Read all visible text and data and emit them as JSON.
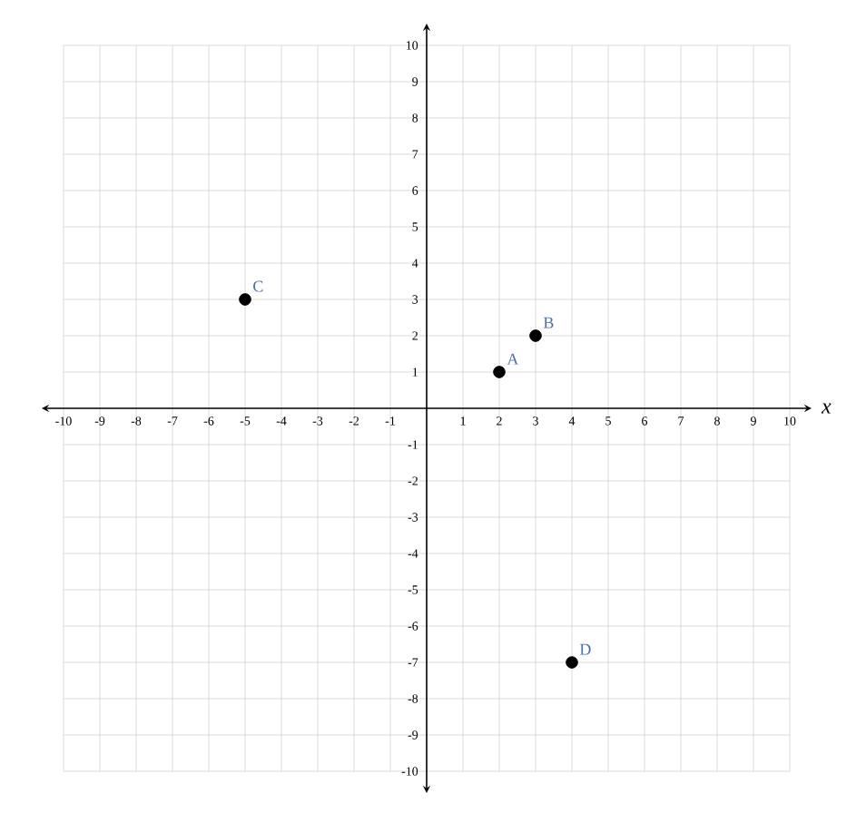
{
  "chart_data": {
    "type": "scatter",
    "xlabel": "x",
    "x": [
      2,
      3,
      -5,
      4
    ],
    "values": [
      1,
      2,
      3,
      -7
    ],
    "color": "#000000",
    "grid": true,
    "xlim": [
      -10,
      10
    ],
    "ylim": [
      -10,
      10
    ],
    "xticks": [
      -10,
      -9,
      -8,
      -7,
      -6,
      -5,
      -4,
      -3,
      -2,
      -1,
      1,
      2,
      3,
      4,
      5,
      6,
      7,
      8,
      9,
      10
    ],
    "yticks": [
      -10,
      -9,
      -8,
      -7,
      -6,
      -5,
      -4,
      -3,
      -2,
      -1,
      1,
      2,
      3,
      4,
      5,
      6,
      7,
      8,
      9,
      10
    ],
    "annotations": [
      {
        "text": "A",
        "x": 2,
        "y": 1
      },
      {
        "text": "B",
        "x": 3,
        "y": 2
      },
      {
        "text": "C",
        "x": -5,
        "y": 3
      },
      {
        "text": "D",
        "x": 4,
        "y": -7
      }
    ]
  }
}
